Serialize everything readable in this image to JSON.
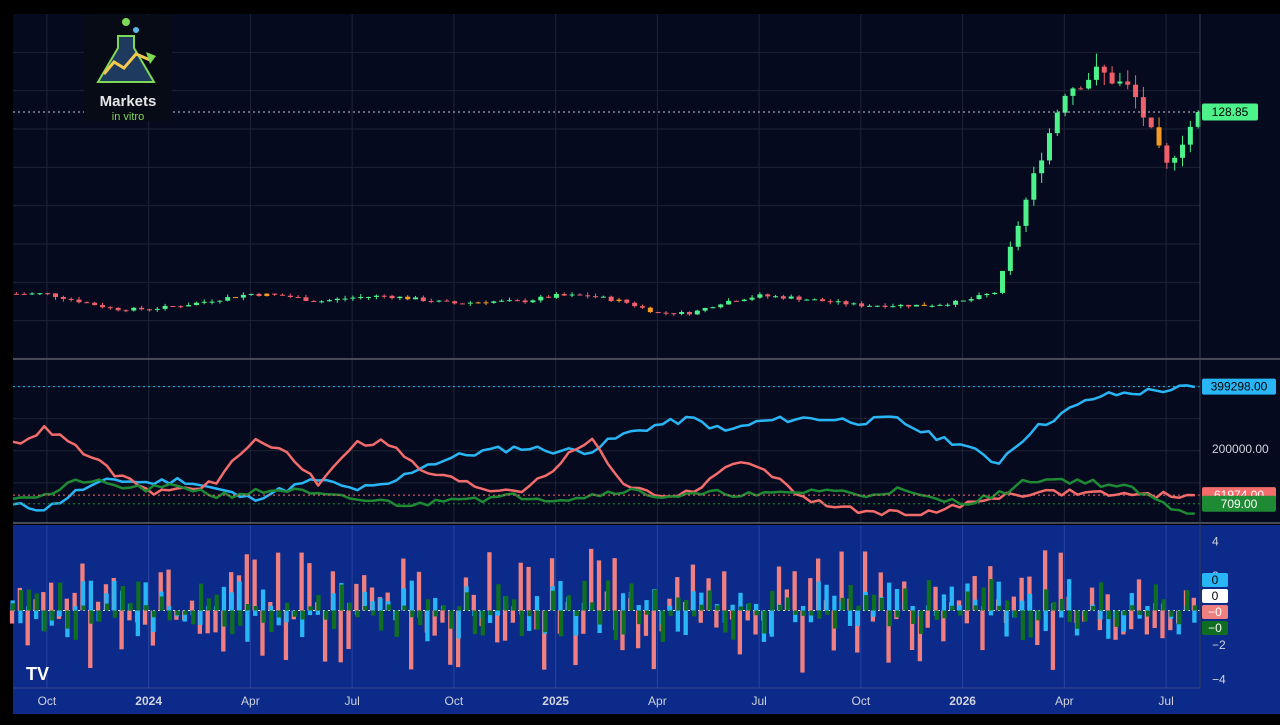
{
  "branding": {
    "logo_line1": "Markets",
    "logo_line2": "in vitro",
    "watermark": "TV"
  },
  "colors": {
    "background": "#000000",
    "pane_bg": "#060a1e",
    "osc_bg": "#0b2a8a",
    "grid": "#1e2436",
    "candle_up": "#4ef28a",
    "candle_down": "#f0606a",
    "candle_neutral": "#f59a23",
    "line_blue": "#29b6f6",
    "line_red": "#f36c6c",
    "line_green": "#1f8a34",
    "hist_red": "#f08080",
    "hist_blue": "#29b6f6",
    "hist_green": "#0f6e22"
  },
  "x_axis": {
    "labels": [
      {
        "text": "Oct",
        "bold": false
      },
      {
        "text": "2024",
        "bold": true
      },
      {
        "text": "Apr",
        "bold": false
      },
      {
        "text": "Jul",
        "bold": false
      },
      {
        "text": "Oct",
        "bold": false
      },
      {
        "text": "2025",
        "bold": true
      },
      {
        "text": "Apr",
        "bold": false
      },
      {
        "text": "Jul",
        "bold": false
      },
      {
        "text": "Oct",
        "bold": false
      },
      {
        "text": "2026",
        "bold": true
      },
      {
        "text": "Apr",
        "bold": false
      },
      {
        "text": "Jul",
        "bold": false
      }
    ]
  },
  "price_pane": {
    "last_price_label": "128.85",
    "last_price": 128.85
  },
  "volume_pane": {
    "scale_label": "200000.00",
    "tags": [
      {
        "label": "399298.00",
        "value": 399298,
        "color": "#29b6f6",
        "text_color": "#000000"
      },
      {
        "label": "61974.00",
        "value": 61974,
        "color": "#f36c6c",
        "text_color": "#ffffff"
      },
      {
        "label": "709.00",
        "value": 709,
        "color": "#1f8a34",
        "text_color": "#ffffff"
      }
    ]
  },
  "osc_pane": {
    "axis_labels": [
      "4",
      "2",
      "0",
      "−2",
      "−4"
    ],
    "tags": [
      {
        "label": "0",
        "color": "#29b6f6",
        "text_color": "#000000"
      },
      {
        "label": "0",
        "color": "#ffffff",
        "text_color": "#000000"
      },
      {
        "label": "−0",
        "color": "#f08080",
        "text_color": "#ffffff"
      },
      {
        "label": "−0",
        "color": "#0f6e22",
        "text_color": "#ffffff"
      }
    ]
  },
  "chart_data": [
    {
      "type": "candlestick",
      "title": "",
      "x_range": [
        "2023-09",
        "2026-07"
      ],
      "ylim": [
        0,
        180
      ],
      "grid": true,
      "last_value": 128.85,
      "shape_points": [
        [
          "2023-09",
          34
        ],
        [
          "2023-10",
          34
        ],
        [
          "2023-11",
          30
        ],
        [
          "2023-12",
          26
        ],
        [
          "2024-01",
          26
        ],
        [
          "2024-02",
          28
        ],
        [
          "2024-03",
          31
        ],
        [
          "2024-04",
          34
        ],
        [
          "2024-05",
          33
        ],
        [
          "2024-06",
          30
        ],
        [
          "2024-07",
          32
        ],
        [
          "2024-08",
          33
        ],
        [
          "2024-09",
          31
        ],
        [
          "2024-10",
          29
        ],
        [
          "2024-11",
          30
        ],
        [
          "2024-12",
          30
        ],
        [
          "2025-01",
          33
        ],
        [
          "2025-02",
          33
        ],
        [
          "2025-03",
          30
        ],
        [
          "2025-04",
          24
        ],
        [
          "2025-05",
          24
        ],
        [
          "2025-06",
          30
        ],
        [
          "2025-07",
          33
        ],
        [
          "2025-08",
          32
        ],
        [
          "2025-09",
          30
        ],
        [
          "2025-10",
          28
        ],
        [
          "2025-11",
          28
        ],
        [
          "2025-12",
          28
        ],
        [
          "2026-01",
          30
        ],
        [
          "2026-02",
          35
        ],
        [
          "2026-03",
          90
        ],
        [
          "2026-04",
          140
        ],
        [
          "2026-05",
          150
        ],
        [
          "2026-06",
          140
        ],
        [
          "2026-07",
          100
        ],
        [
          "2026-07-31",
          128.85
        ]
      ]
    },
    {
      "type": "line",
      "title": "",
      "ylim": [
        0,
        420000
      ],
      "series": [
        {
          "color": "#29b6f6",
          "points": [
            [
              "2023-09",
              30000
            ],
            [
              "2023-10",
              20000
            ],
            [
              "2023-11",
              80000
            ],
            [
              "2023-12",
              110000
            ],
            [
              "2024-01",
              100000
            ],
            [
              "2024-02",
              110000
            ],
            [
              "2024-03",
              80000
            ],
            [
              "2024-04",
              50000
            ],
            [
              "2024-05",
              80000
            ],
            [
              "2024-06",
              110000
            ],
            [
              "2024-07",
              80000
            ],
            [
              "2024-08",
              90000
            ],
            [
              "2024-09",
              150000
            ],
            [
              "2024-10",
              180000
            ],
            [
              "2024-11",
              200000
            ],
            [
              "2024-12",
              210000
            ],
            [
              "2025-01",
              200000
            ],
            [
              "2025-02",
              200000
            ],
            [
              "2025-03",
              250000
            ],
            [
              "2025-04",
              280000
            ],
            [
              "2025-05",
              300000
            ],
            [
              "2025-06",
              260000
            ],
            [
              "2025-07",
              290000
            ],
            [
              "2025-08",
              300000
            ],
            [
              "2025-09",
              300000
            ],
            [
              "2025-10",
              290000
            ],
            [
              "2025-11",
              300000
            ],
            [
              "2025-12",
              250000
            ],
            [
              "2026-01",
              220000
            ],
            [
              "2026-02",
              160000
            ],
            [
              "2026-03",
              260000
            ],
            [
              "2026-04",
              320000
            ],
            [
              "2026-05",
              370000
            ],
            [
              "2026-06",
              380000
            ],
            [
              "2026-07",
              390000
            ],
            [
              "2026-07-31",
              399298
            ]
          ]
        },
        {
          "color": "#f36c6c",
          "points": [
            [
              "2023-09",
              220000
            ],
            [
              "2023-10",
              270000
            ],
            [
              "2023-11",
              200000
            ],
            [
              "2023-12",
              130000
            ],
            [
              "2024-01",
              70000
            ],
            [
              "2024-02",
              80000
            ],
            [
              "2024-03",
              100000
            ],
            [
              "2024-04",
              230000
            ],
            [
              "2024-05",
              200000
            ],
            [
              "2024-06",
              100000
            ],
            [
              "2024-07",
              220000
            ],
            [
              "2024-08",
              230000
            ],
            [
              "2024-09",
              140000
            ],
            [
              "2024-10",
              110000
            ],
            [
              "2024-11",
              80000
            ],
            [
              "2024-12",
              80000
            ],
            [
              "2025-01",
              150000
            ],
            [
              "2025-02",
              240000
            ],
            [
              "2025-03",
              100000
            ],
            [
              "2025-04",
              60000
            ],
            [
              "2025-05",
              70000
            ],
            [
              "2025-06",
              150000
            ],
            [
              "2025-07",
              160000
            ],
            [
              "2025-08",
              70000
            ],
            [
              "2025-09",
              30000
            ],
            [
              "2025-10",
              10000
            ],
            [
              "2025-11",
              5000
            ],
            [
              "2025-12",
              5000
            ],
            [
              "2026-01",
              30000
            ],
            [
              "2026-02",
              60000
            ],
            [
              "2026-03",
              70000
            ],
            [
              "2026-04",
              70000
            ],
            [
              "2026-05",
              70000
            ],
            [
              "2026-06",
              60000
            ],
            [
              "2026-07",
              61974
            ],
            [
              "2026-07-31",
              61974
            ]
          ]
        },
        {
          "color": "#1f8a34",
          "points": [
            [
              "2023-09",
              60000
            ],
            [
              "2023-10",
              60000
            ],
            [
              "2023-11",
              110000
            ],
            [
              "2023-12",
              90000
            ],
            [
              "2024-01",
              80000
            ],
            [
              "2024-02",
              90000
            ],
            [
              "2024-03",
              60000
            ],
            [
              "2024-04",
              70000
            ],
            [
              "2024-05",
              80000
            ],
            [
              "2024-06",
              60000
            ],
            [
              "2024-07",
              50000
            ],
            [
              "2024-08",
              40000
            ],
            [
              "2024-09",
              30000
            ],
            [
              "2024-10",
              60000
            ],
            [
              "2024-11",
              50000
            ],
            [
              "2024-12",
              60000
            ],
            [
              "2025-01",
              50000
            ],
            [
              "2025-02",
              60000
            ],
            [
              "2025-03",
              80000
            ],
            [
              "2025-04",
              60000
            ],
            [
              "2025-05",
              60000
            ],
            [
              "2025-06",
              70000
            ],
            [
              "2025-07",
              60000
            ],
            [
              "2025-08",
              70000
            ],
            [
              "2025-09",
              80000
            ],
            [
              "2025-10",
              60000
            ],
            [
              "2025-11",
              80000
            ],
            [
              "2025-12",
              50000
            ],
            [
              "2026-01",
              40000
            ],
            [
              "2026-02",
              60000
            ],
            [
              "2026-03",
              110000
            ],
            [
              "2026-04",
              110000
            ],
            [
              "2026-05",
              100000
            ],
            [
              "2026-06",
              80000
            ],
            [
              "2026-07",
              30000
            ],
            [
              "2026-07-31",
              709
            ]
          ]
        }
      ]
    },
    {
      "type": "bar",
      "title": "",
      "ylim": [
        -4.5,
        4.5
      ],
      "axis_ticks": [
        4,
        2,
        0,
        -2,
        -4
      ],
      "series": [
        {
          "color": "#f08080",
          "amplitude": 3.2
        },
        {
          "color": "#29b6f6",
          "amplitude": 1.6
        },
        {
          "color": "#0f6e22",
          "amplitude": 1.6
        }
      ]
    }
  ]
}
